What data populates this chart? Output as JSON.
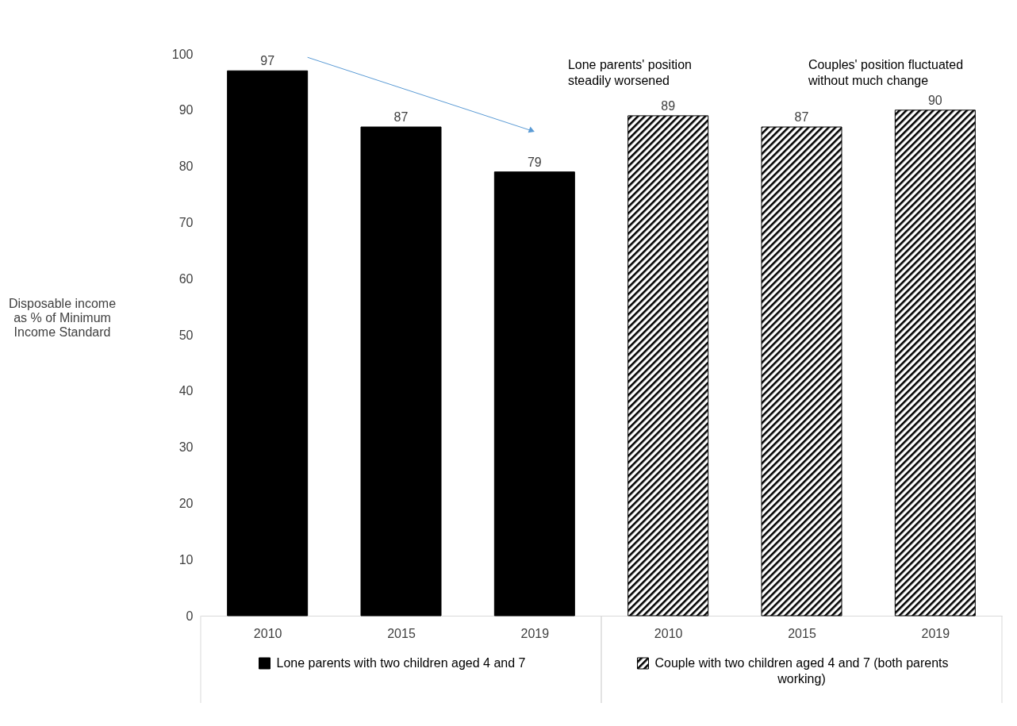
{
  "chart_data": {
    "type": "bar",
    "ylabel": "Disposable income as % of Minimum Income Standard",
    "categories": [
      "2010",
      "2015",
      "2019",
      "2010",
      "2015",
      "2019"
    ],
    "series": [
      {
        "name": "Lone parents with two children aged 4 and 7",
        "color": "#000000",
        "values": [
          97,
          87,
          79,
          null,
          null,
          null
        ]
      },
      {
        "name": "Couple with two children aged 4 and 7 (both parents working)",
        "color": "#000000",
        "values": [
          null,
          null,
          null,
          89,
          87,
          90
        ]
      }
    ],
    "ylim": [
      0,
      100
    ],
    "yticks": [
      0,
      10,
      20,
      30,
      40,
      50,
      60,
      70,
      80,
      90,
      100
    ],
    "grid": false,
    "legend": "bottom",
    "data_labels": true,
    "annotations": [
      "Lone parents' position steadily worsened",
      "Couples' position fluctuated without much change"
    ]
  }
}
